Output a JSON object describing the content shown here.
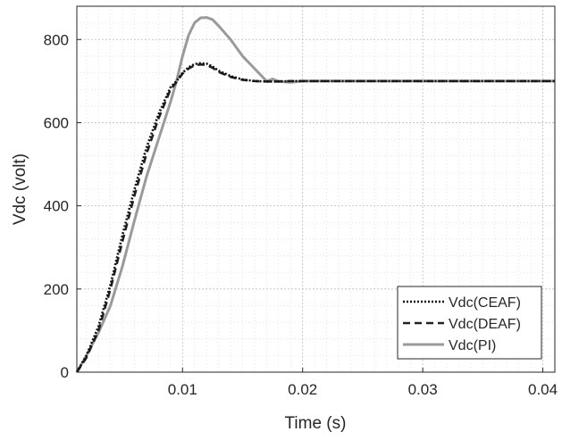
{
  "chart_data": {
    "type": "line",
    "xlabel": "Time (s)",
    "ylabel": "Vdc (volt)",
    "xlim": [
      0.0012,
      0.041
    ],
    "ylim": [
      0,
      880
    ],
    "x_ticks": [
      0.01,
      0.02,
      0.03,
      0.04
    ],
    "x_tick_labels": [
      "0.01",
      "0.02",
      "0.03",
      "0.04"
    ],
    "y_ticks": [
      0,
      200,
      400,
      600,
      800
    ],
    "y_tick_labels": [
      "0",
      "200",
      "400",
      "600",
      "800"
    ],
    "grid": true,
    "grid_style": "dotted",
    "minor_grid": true,
    "legend_position": "bottom-right",
    "series": [
      {
        "name": "Vdc(CEAF)",
        "style": "dotted",
        "color": "#111111",
        "x": [
          0.0012,
          0.002,
          0.003,
          0.004,
          0.005,
          0.006,
          0.007,
          0.008,
          0.009,
          0.0095,
          0.01,
          0.0105,
          0.011,
          0.0115,
          0.012,
          0.0125,
          0.013,
          0.014,
          0.015,
          0.016,
          0.017,
          0.018,
          0.019,
          0.02,
          0.03,
          0.041
        ],
        "y": [
          0,
          40,
          110,
          210,
          330,
          440,
          540,
          620,
          685,
          700,
          720,
          733,
          741,
          743,
          742,
          735,
          725,
          712,
          704,
          700,
          699,
          699,
          700,
          700,
          700,
          700
        ]
      },
      {
        "name": "Vdc(DEAF)",
        "style": "dashed",
        "color": "#222222",
        "x": [
          0.0012,
          0.002,
          0.003,
          0.004,
          0.005,
          0.006,
          0.007,
          0.008,
          0.009,
          0.0095,
          0.01,
          0.0105,
          0.011,
          0.0115,
          0.012,
          0.0125,
          0.013,
          0.014,
          0.015,
          0.016,
          0.017,
          0.018,
          0.019,
          0.02,
          0.03,
          0.041
        ],
        "y": [
          0,
          35,
          100,
          200,
          315,
          425,
          525,
          610,
          680,
          698,
          718,
          730,
          738,
          740,
          739,
          732,
          722,
          710,
          703,
          700,
          699,
          699,
          700,
          700,
          700,
          700
        ]
      },
      {
        "name": "Vdc(PI)",
        "style": "solid",
        "color": "#9a9a9a",
        "x": [
          0.0012,
          0.002,
          0.003,
          0.004,
          0.005,
          0.006,
          0.007,
          0.008,
          0.009,
          0.0095,
          0.01,
          0.0105,
          0.011,
          0.0115,
          0.012,
          0.0125,
          0.013,
          0.014,
          0.015,
          0.016,
          0.0165,
          0.017,
          0.0175,
          0.018,
          0.0185,
          0.019,
          0.02,
          0.03,
          0.041
        ],
        "y": [
          0,
          40,
          95,
          160,
          255,
          365,
          470,
          560,
          650,
          700,
          760,
          810,
          840,
          852,
          853,
          848,
          833,
          800,
          760,
          730,
          715,
          700,
          705,
          700,
          698,
          697,
          700,
          700,
          700
        ]
      }
    ]
  }
}
